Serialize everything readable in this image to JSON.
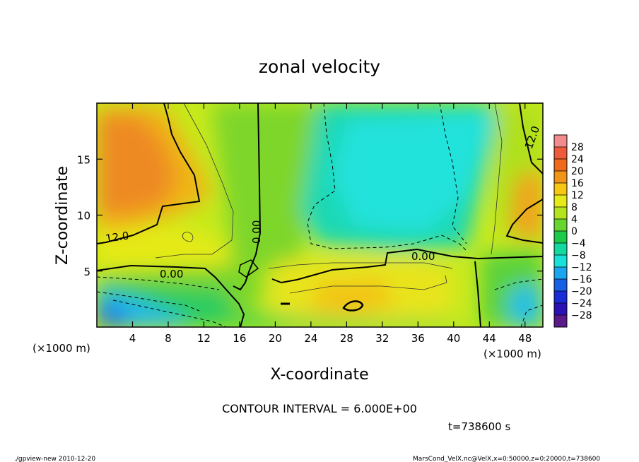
{
  "chart_data": {
    "type": "heatmap",
    "title": "zonal velocity",
    "xlabel": "X-coordinate",
    "ylabel": "Z-coordinate",
    "x_unit": "(×1000 m)",
    "xlim": [
      0,
      50
    ],
    "ylim": [
      0,
      20
    ],
    "x_ticks": [
      4,
      8,
      12,
      16,
      20,
      24,
      28,
      32,
      36,
      40,
      44,
      48
    ],
    "y_ticks": [
      5,
      10,
      15
    ],
    "colorbar": {
      "levels": [
        28,
        24,
        20,
        16,
        12,
        8,
        4,
        0,
        -4,
        -8,
        -12,
        -16,
        -20,
        -24,
        -28
      ],
      "colors": [
        "#f28c8c",
        "#ef5a3a",
        "#ef6a1a",
        "#f29418",
        "#f7c812",
        "#e6ea18",
        "#b4e41e",
        "#66d62e",
        "#1ccb4a",
        "#14d9a0",
        "#18e2d8",
        "#1aa6ee",
        "#1760e6",
        "#1a2cd8",
        "#2a12b4",
        "#5a1a8a"
      ]
    },
    "contour_labels": [
      "12.0",
      "0.00",
      "0.00",
      "0.00",
      "12.0"
    ],
    "contour_interval_text": "CONTOUR INTERVAL = 6.000E+00",
    "time_text": "t=738600 s",
    "footer_left": "./gpview-new  2010-12-20",
    "footer_right": "MarsCond_VelX.nc@VelX,x=0:50000,z=0:20000,t=738600"
  }
}
